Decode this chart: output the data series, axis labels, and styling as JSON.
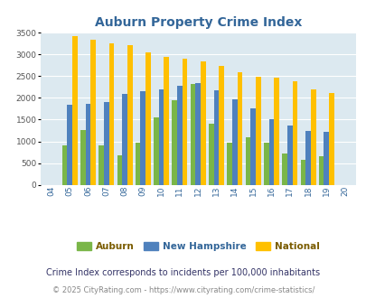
{
  "title": "Auburn Property Crime Index",
  "years": [
    "04",
    "05",
    "06",
    "07",
    "08",
    "09",
    "10",
    "11",
    "12",
    "13",
    "14",
    "15",
    "16",
    "17",
    "18",
    "19",
    "20"
  ],
  "auburn": [
    0,
    900,
    1270,
    900,
    670,
    960,
    1550,
    1950,
    2330,
    1400,
    960,
    1090,
    970,
    720,
    570,
    650,
    0
  ],
  "new_hampshire": [
    0,
    1850,
    1860,
    1900,
    2090,
    2150,
    2190,
    2280,
    2340,
    2180,
    1970,
    1760,
    1510,
    1370,
    1240,
    1210,
    0
  ],
  "national": [
    0,
    3420,
    3340,
    3260,
    3210,
    3040,
    2950,
    2900,
    2850,
    2730,
    2590,
    2490,
    2460,
    2380,
    2200,
    2110,
    0
  ],
  "auburn_color": "#7ab648",
  "nh_color": "#4f81bd",
  "national_color": "#ffc000",
  "bg_color": "#dce9f0",
  "ylim": [
    0,
    3500
  ],
  "yticks": [
    0,
    500,
    1000,
    1500,
    2000,
    2500,
    3000,
    3500
  ],
  "footnote1": "Crime Index corresponds to incidents per 100,000 inhabitants",
  "footnote2": "© 2025 CityRating.com - https://www.cityrating.com/crime-statistics/",
  "bar_width": 0.28,
  "title_color": "#336699",
  "xtick_color": "#336699",
  "ytick_color": "#555555",
  "legend_auburn_color": "#7a5c00",
  "legend_nh_color": "#336699",
  "legend_national_color": "#7a5c00",
  "footnote1_color": "#333366",
  "footnote2_color": "#888888",
  "grid_color": "#ffffff"
}
